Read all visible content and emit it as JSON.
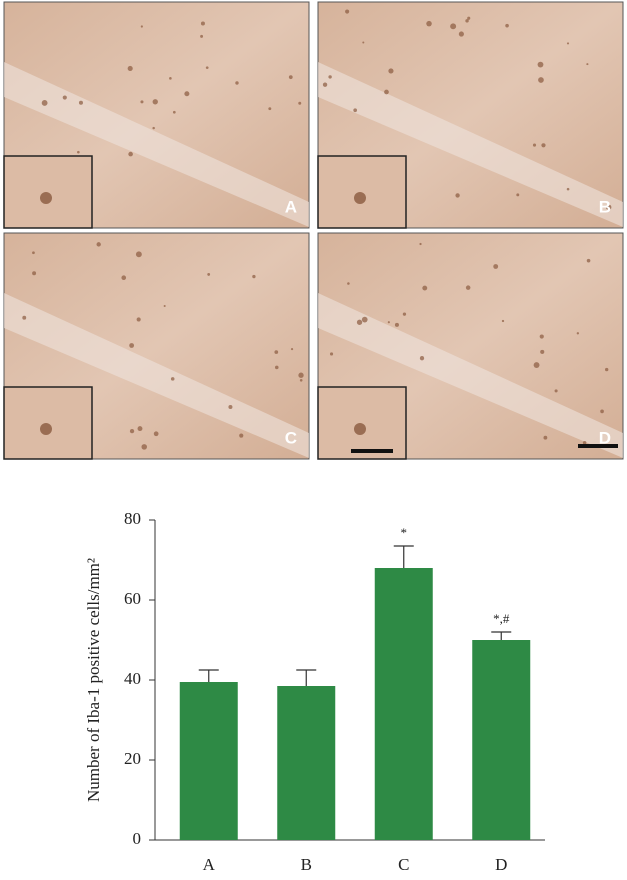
{
  "panels": [
    {
      "label": "A"
    },
    {
      "label": "B"
    },
    {
      "label": "C"
    },
    {
      "label": "D"
    }
  ],
  "chart_data": {
    "type": "bar",
    "y_label": "Number of Iba-1 positive cells/mm²",
    "categories": [
      "A",
      "B",
      "C",
      "D"
    ],
    "values": [
      39.5,
      38.5,
      68,
      50
    ],
    "errors": [
      3,
      4,
      5.5,
      2
    ],
    "color": "#2e8a45",
    "ylim": [
      0,
      80
    ],
    "yticks": [
      0,
      20,
      40,
      60,
      80
    ],
    "annotations": [
      {
        "category": "C",
        "text": "*"
      },
      {
        "category": "D",
        "text": "*,#"
      }
    ]
  }
}
